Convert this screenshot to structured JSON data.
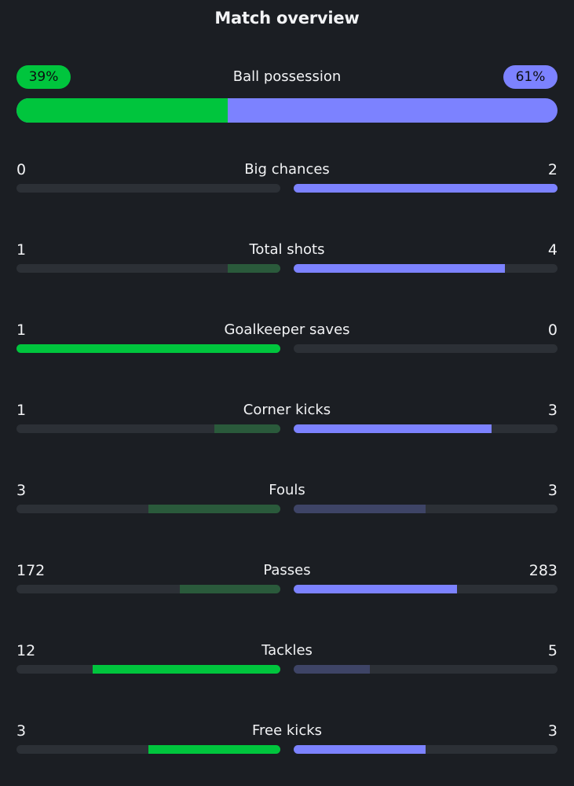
{
  "title": "Match overview",
  "possession": {
    "label": "Ball possession",
    "home": "39%",
    "away": "61%",
    "home_fraction": 0.39
  },
  "colors": {
    "home_strong": "#00c53d",
    "home_dim": "#2a5a3b",
    "away_strong": "#7c82ff",
    "away_dim": "#3e4466"
  },
  "stats": [
    {
      "label": "Big chances",
      "home": "0",
      "away": "2"
    },
    {
      "label": "Total shots",
      "home": "1",
      "away": "4"
    },
    {
      "label": "Goalkeeper saves",
      "home": "1",
      "away": "0"
    },
    {
      "label": "Corner kicks",
      "home": "1",
      "away": "3"
    },
    {
      "label": "Fouls",
      "home": "3",
      "away": "3"
    },
    {
      "label": "Passes",
      "home": "172",
      "away": "283"
    },
    {
      "label": "Tackles",
      "home": "12",
      "away": "5"
    },
    {
      "label": "Free kicks",
      "home": "3",
      "away": "3"
    }
  ],
  "bars": [
    {
      "home": 0.0,
      "away": 1.0,
      "home_style": "dim",
      "away_style": "strong"
    },
    {
      "home": 0.2,
      "away": 0.8,
      "home_style": "dim",
      "away_style": "strong"
    },
    {
      "home": 1.0,
      "away": 0.0,
      "home_style": "strong",
      "away_style": "dim"
    },
    {
      "home": 0.25,
      "away": 0.75,
      "home_style": "dim",
      "away_style": "strong"
    },
    {
      "home": 0.5,
      "away": 0.5,
      "home_style": "dim",
      "away_style": "dim"
    },
    {
      "home": 0.38,
      "away": 0.62,
      "home_style": "dim",
      "away_style": "strong"
    },
    {
      "home": 0.71,
      "away": 0.29,
      "home_style": "strong",
      "away_style": "dim"
    },
    {
      "home": 0.5,
      "away": 0.5,
      "home_style": "strong",
      "away_style": "strong"
    }
  ]
}
